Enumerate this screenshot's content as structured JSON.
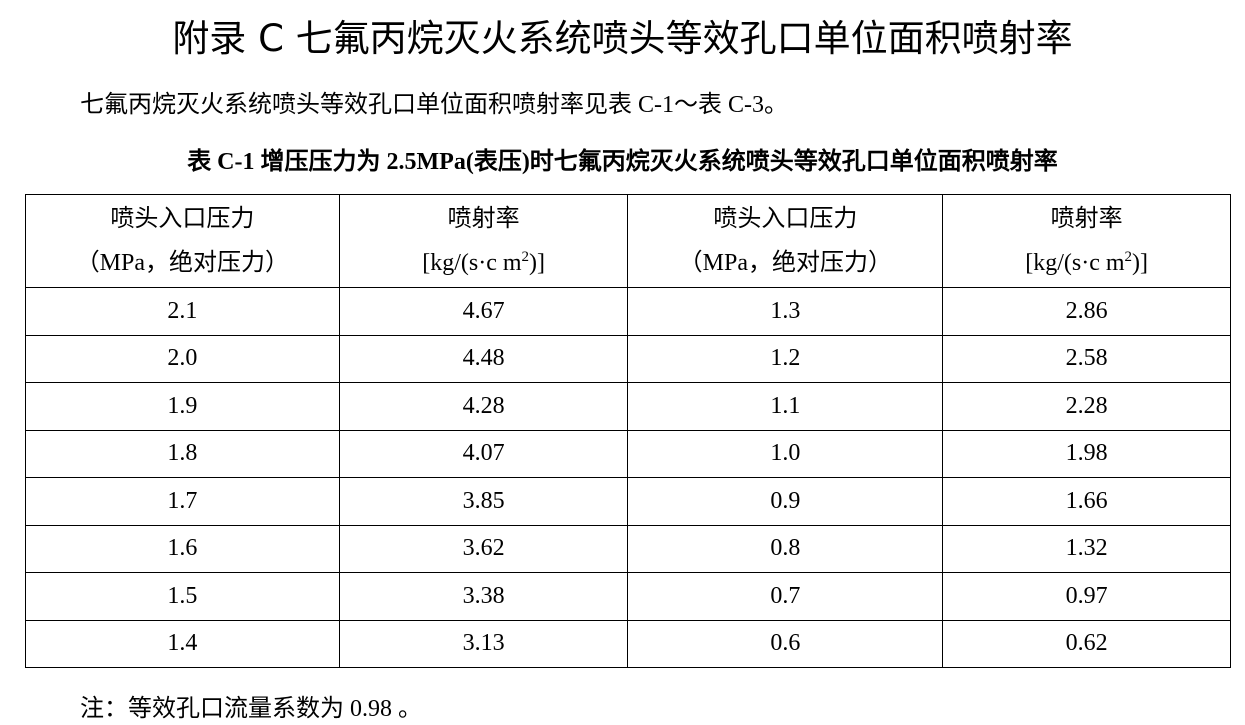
{
  "header": {
    "title": "附录 C  七氟丙烷灭火系统喷头等效孔口单位面积喷射率"
  },
  "intro": "七氟丙烷灭火系统喷头等效孔口单位面积喷射率见表 C-1～表 C-3。",
  "table": {
    "caption": "表 C-1  增压压力为 2.5MPa(表压)时七氟丙烷灭火系统喷头等效孔口单位面积喷射率",
    "headers": [
      {
        "line1": "喷头入口压力",
        "line2": "（MPa，绝对压力）"
      },
      {
        "line1": "喷射率",
        "unit_before": "[kg/(s·c m",
        "unit_sup": "2",
        "unit_after": ")]"
      },
      {
        "line1": "喷头入口压力",
        "line2": "（MPa，绝对压力）"
      },
      {
        "line1": "喷射率",
        "unit_before": "[kg/(s·c m",
        "unit_sup": "2",
        "unit_after": ")]"
      }
    ],
    "rows": [
      [
        "2.1",
        "4.67",
        "1.3",
        "2.86"
      ],
      [
        "2.0",
        "4.48",
        "1.2",
        "2.58"
      ],
      [
        "1.9",
        "4.28",
        "1.1",
        "2.28"
      ],
      [
        "1.8",
        "4.07",
        "1.0",
        "1.98"
      ],
      [
        "1.7",
        "3.85",
        "0.9",
        "1.66"
      ],
      [
        "1.6",
        "3.62",
        "0.8",
        "1.32"
      ],
      [
        "1.5",
        "3.38",
        "0.7",
        "0.97"
      ],
      [
        "1.4",
        "3.13",
        "0.6",
        "0.62"
      ]
    ]
  },
  "note": "注：等效孔口流量系数为 0.98 。"
}
